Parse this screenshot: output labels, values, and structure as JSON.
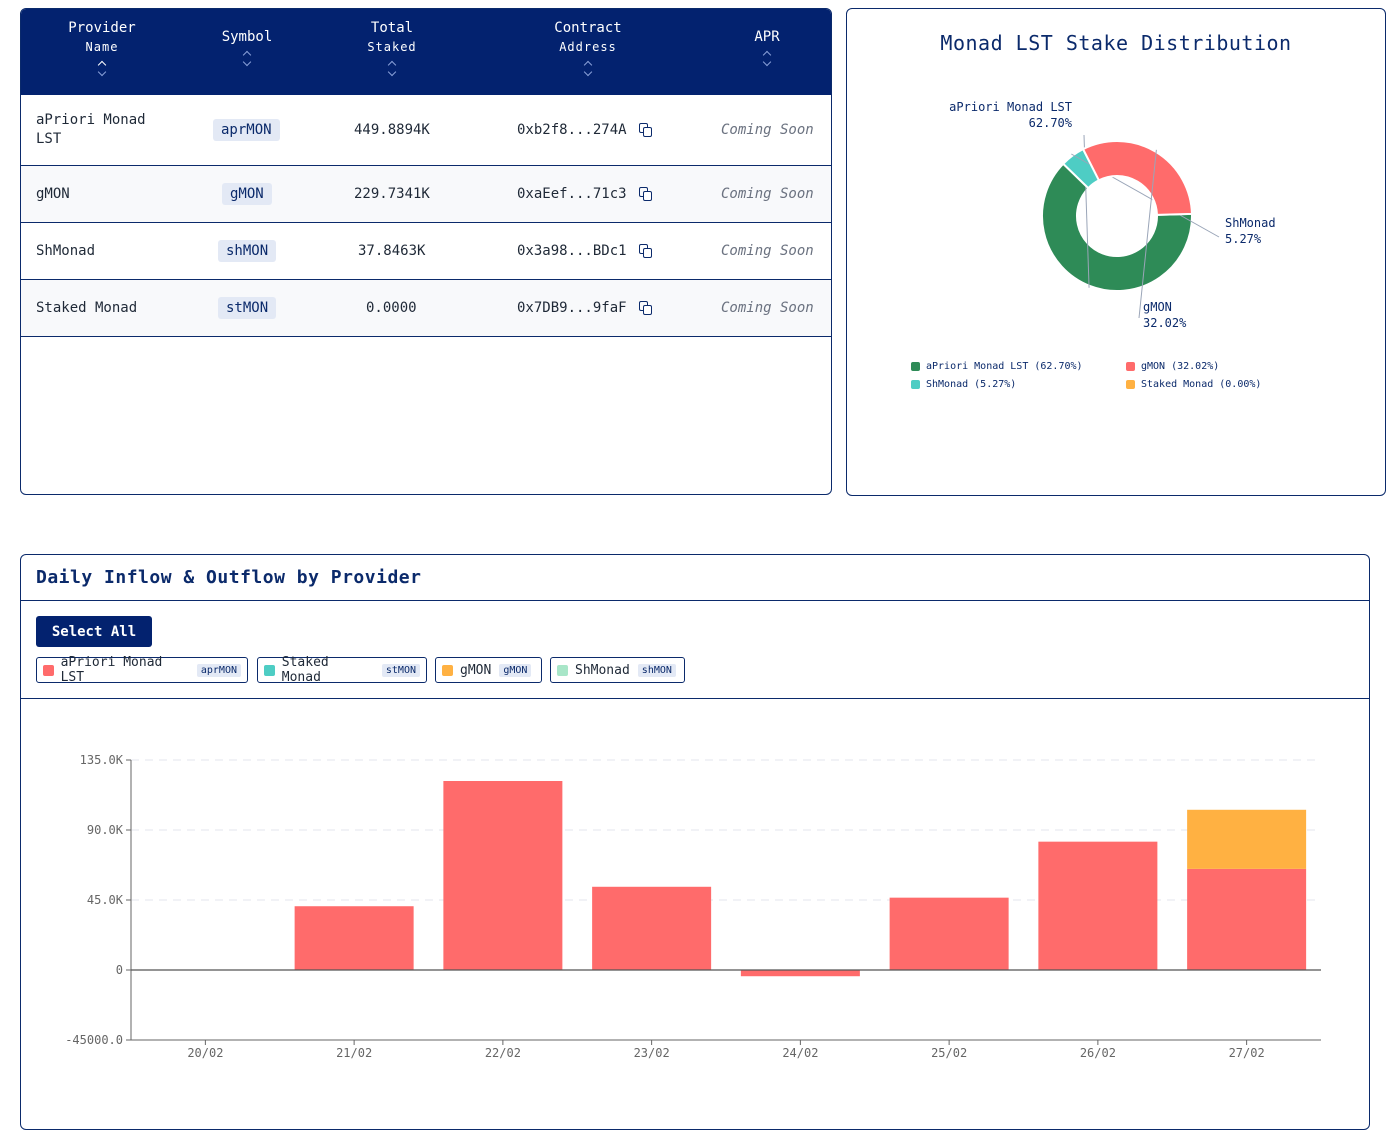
{
  "table": {
    "headers": [
      {
        "line1": "Provider",
        "line2": "Name",
        "active": true
      },
      {
        "line1": "Symbol",
        "line2": "",
        "active": false
      },
      {
        "line1": "Total",
        "line2": "Staked",
        "active": false
      },
      {
        "line1": "Contract",
        "line2": "Address",
        "active": false
      },
      {
        "line1": "APR",
        "line2": "",
        "active": false
      }
    ],
    "rows": [
      {
        "name": "aPriori Monad LST",
        "symbol": "aprMON",
        "staked": "449.8894K",
        "address": "0xb2f8...274A",
        "apr": "Coming Soon"
      },
      {
        "name": "gMON",
        "symbol": "gMON",
        "staked": "229.7341K",
        "address": "0xaEef...71c3",
        "apr": "Coming Soon"
      },
      {
        "name": "ShMonad",
        "symbol": "shMON",
        "staked": "37.8463K",
        "address": "0x3a98...BDc1",
        "apr": "Coming Soon"
      },
      {
        "name": "Staked Monad",
        "symbol": "stMON",
        "staked": "0.0000",
        "address": "0x7DB9...9faF",
        "apr": "Coming Soon"
      }
    ]
  },
  "donut": {
    "title": "Monad LST Stake Distribution",
    "chart_data": {
      "type": "pie",
      "slices": [
        {
          "name": "aPriori Monad LST",
          "value": 62.7,
          "label": "62.70%",
          "color": "#2e8b57"
        },
        {
          "name": "ShMonad",
          "value": 5.27,
          "label": "5.27%",
          "color": "#4ecdc4"
        },
        {
          "name": "gMON",
          "value": 32.02,
          "label": "32.02%",
          "color": "#ff6b6b"
        },
        {
          "name": "Staked Monad",
          "value": 0.0,
          "label": "0.00%",
          "color": "#ffb142"
        }
      ],
      "legend": [
        "aPriori Monad LST (62.70%)",
        "gMON (32.02%)",
        "ShMonad (5.27%)",
        "Staked Monad (0.00%)"
      ]
    }
  },
  "flow": {
    "title": "Daily Inflow & Outflow by Provider",
    "select_all_label": "Select All",
    "providers": [
      {
        "name": "aPriori Monad LST",
        "tag": "aprMON",
        "color": "#ff6b6b"
      },
      {
        "name": "Staked Monad",
        "tag": "stMON",
        "color": "#4ecdc4"
      },
      {
        "name": "gMON",
        "tag": "gMON",
        "color": "#ffb142"
      },
      {
        "name": "ShMonad",
        "tag": "shMON",
        "color": "#a8e6c8"
      }
    ],
    "chart_data": {
      "type": "bar",
      "stacked": true,
      "categories": [
        "20/02",
        "21/02",
        "22/02",
        "23/02",
        "24/02",
        "25/02",
        "26/02",
        "27/02"
      ],
      "series": [
        {
          "name": "aPriori Monad LST",
          "color": "#ff6b6b",
          "values": [
            0,
            41000,
            121500,
            53500,
            -4000,
            46500,
            82500,
            65000
          ]
        },
        {
          "name": "gMON",
          "color": "#ffb142",
          "values": [
            0,
            0,
            0,
            0,
            0,
            0,
            0,
            38000
          ]
        }
      ],
      "ylim": [
        -45000,
        135000
      ],
      "yticks": [
        "135.0K",
        "90.0K",
        "45.0K",
        "0",
        "-45000.0"
      ],
      "ytick_values": [
        135000,
        90000,
        45000,
        0,
        -45000
      ],
      "grid": true
    }
  }
}
